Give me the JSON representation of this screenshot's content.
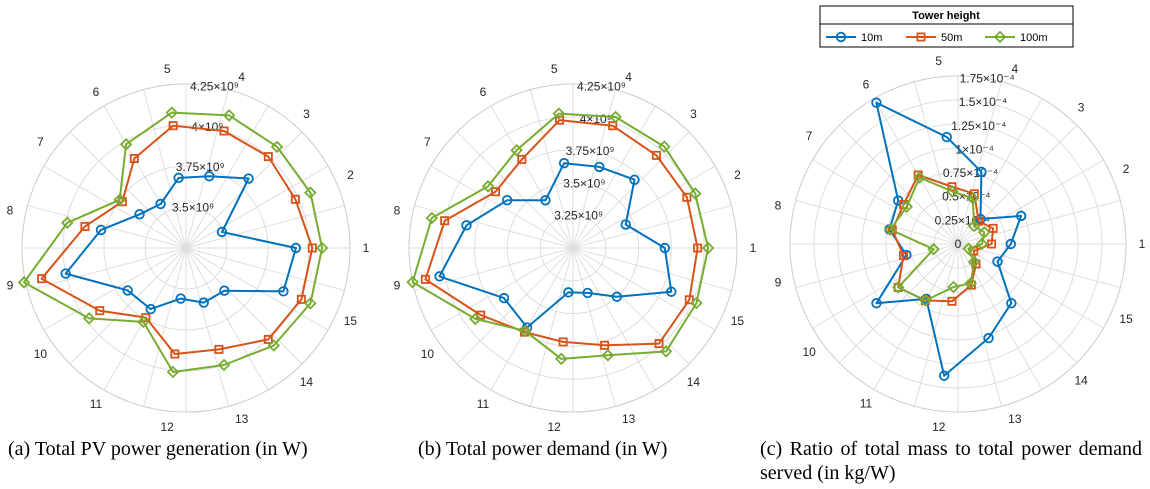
{
  "legend": {
    "title": "Tower height",
    "entries": [
      "10m",
      "50m",
      "100m"
    ]
  },
  "colors": {
    "10m": "#0072BD",
    "50m": "#D95319",
    "100m": "#77AC30",
    "grid": "#dedede",
    "text": "#262626"
  },
  "captions": {
    "a": "(a) Total PV power generation (in W)",
    "b": "(b) Total power demand (in W)",
    "c": "(c) Ratio of total mass to total power demand served (in kg/W)"
  },
  "chart_data": [
    {
      "type": "polar-line",
      "theta_labels": [
        "1",
        "2",
        "3",
        "4",
        "5",
        "6",
        "7",
        "8",
        "9",
        "10",
        "11",
        "12",
        "13",
        "14",
        "15"
      ],
      "r_ticks": [
        "3.5×10⁹",
        "3.75×10⁹",
        "4×10⁹",
        "4.25×10⁹"
      ],
      "rlim": [
        3250000000.0,
        4250000000.0
      ],
      "series": [
        {
          "name": "10m",
          "values": [
            3920000000.0,
            3490000000.0,
            3820000000.0,
            3710000000.0,
            3680000000.0,
            3560000000.0,
            3600000000.0,
            3780000000.0,
            4000000000.0,
            3690000000.0,
            3680000000.0,
            3560000000.0,
            3600000000.0,
            3600000000.0,
            3900000000.0
          ]
        },
        {
          "name": "50m",
          "values": [
            4020000000.0,
            3980000000.0,
            4000000000.0,
            4000000000.0,
            4000000000.0,
            3880000000.0,
            3730000000.0,
            3880000000.0,
            4150000000.0,
            3900000000.0,
            3740000000.0,
            3900000000.0,
            3900000000.0,
            4000000000.0,
            4020000000.0
          ]
        },
        {
          "name": "100m",
          "values": [
            4080000000.0,
            4080000000.0,
            4080000000.0,
            4100000000.0,
            4080000000.0,
            3980000000.0,
            3750000000.0,
            3990000000.0,
            4260000000.0,
            3980000000.0,
            3770000000.0,
            4010000000.0,
            4000000000.0,
            4050000000.0,
            4080000000.0
          ]
        }
      ]
    },
    {
      "type": "polar-line",
      "theta_labels": [
        "1",
        "2",
        "3",
        "4",
        "5",
        "6",
        "7",
        "8",
        "9",
        "10",
        "11",
        "12",
        "13",
        "14",
        "15"
      ],
      "r_ticks": [
        "3.25×10⁹",
        "3.5×10⁹",
        "3.75×10⁹",
        "4×10⁹",
        "4.25×10⁹"
      ],
      "rlim": [
        3000000000.0,
        4250000000.0
      ],
      "series": [
        {
          "name": "10m",
          "values": [
            3700000000.0,
            3440000000.0,
            3700000000.0,
            3650000000.0,
            3650000000.0,
            3420000000.0,
            3620000000.0,
            3830000000.0,
            4040000000.0,
            3650000000.0,
            3700000000.0,
            3340000000.0,
            3360000000.0,
            3500000000.0,
            3820000000.0
          ]
        },
        {
          "name": "50m",
          "values": [
            3950000000.0,
            3950000000.0,
            3950000000.0,
            3980000000.0,
            3980000000.0,
            3780000000.0,
            3730000000.0,
            4000000000.0,
            4150000000.0,
            3870000000.0,
            3740000000.0,
            3720000000.0,
            3780000000.0,
            3980000000.0,
            3970000000.0
          ]
        },
        {
          "name": "100m",
          "values": [
            4030000000.0,
            4020000000.0,
            4040000000.0,
            4050000000.0,
            4030000000.0,
            3860000000.0,
            3800000000.0,
            4100000000.0,
            4250000000.0,
            3920000000.0,
            3730000000.0,
            3850000000.0,
            3860000000.0,
            4060000000.0,
            4030000000.0
          ]
        }
      ]
    },
    {
      "type": "polar-line",
      "theta_labels": [
        "1",
        "2",
        "3",
        "4",
        "5",
        "6",
        "7",
        "8",
        "9",
        "10",
        "11",
        "12",
        "13",
        "14",
        "15"
      ],
      "r_ticks": [
        "0",
        "0.25×10⁻⁴",
        "0.5×10⁻⁴",
        "0.75×10⁻⁴",
        "1×10⁻⁴",
        "1.25×10⁻⁴",
        "1.5×10⁻⁴",
        "1.75×10⁻⁴"
      ],
      "rlim": [
        0,
        0.000175
      ],
      "series": [
        {
          "name": "10m",
          "values": [
            5.5e-05,
            7.2e-05,
            3.5e-05,
            7.9e-05,
            0.000112,
            0.00017,
            7.7e-05,
            7.3e-05,
            5.5e-05,
            0.000105,
            6.6e-05,
            0.000138,
            0.000103,
            8.3e-05,
            4.5e-05
          ]
        },
        {
          "name": "50m",
          "values": [
            3.5e-05,
            4e-05,
            3.2e-05,
            5.5e-05,
            6e-05,
            8.3e-05,
            7e-05,
            7e-05,
            5.8e-05,
            7.7e-05,
            6.8e-05,
            6e-05,
            4.5e-05,
            2.8e-05,
            1.8e-05
          ]
        },
        {
          "name": "100m",
          "values": [
            2.5e-05,
            3e-05,
            2.5e-05,
            5e-05,
            5.5e-05,
            8e-05,
            6.6e-05,
            7.2e-05,
            2.6e-05,
            7.7e-05,
            6.8e-05,
            4.5e-05,
            4.3e-05,
            2.5e-05,
            1.2e-05
          ]
        }
      ]
    }
  ]
}
